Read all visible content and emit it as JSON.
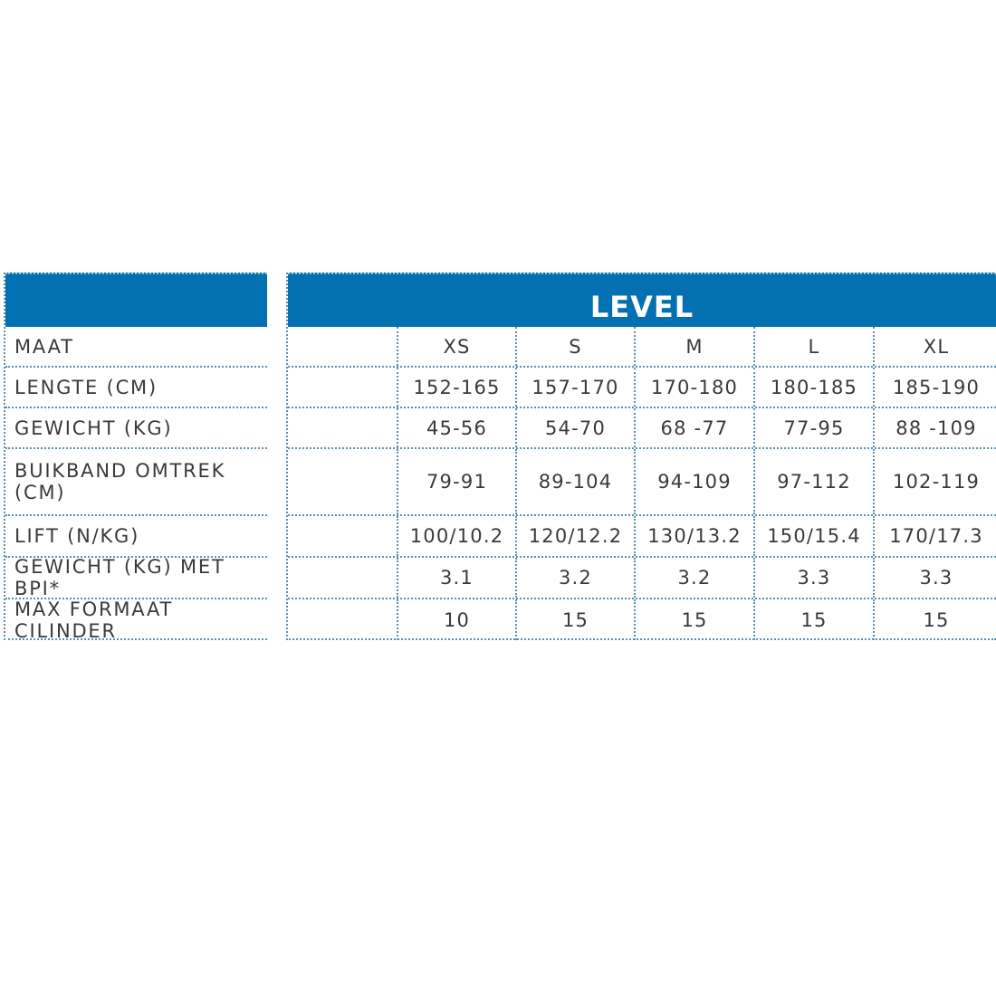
{
  "table": {
    "product_title": "LEVEL",
    "rows": [
      {
        "label": "MAAT",
        "values": [
          "XS",
          "S",
          "M",
          "L",
          "XL"
        ]
      },
      {
        "label": "LENGTE (CM)",
        "values": [
          "152-165",
          "157-170",
          "170-180",
          "180-185",
          "185-190"
        ]
      },
      {
        "label": "GEWICHT (KG)",
        "values": [
          "45-56",
          "54-70",
          "68 -77",
          "77-95",
          "88 -109"
        ]
      },
      {
        "label": "BUIKBAND OMTREK\n(CM)",
        "values": [
          "79-91",
          "89-104",
          "94-109",
          "97-112",
          "102-119"
        ]
      },
      {
        "label": "LIFT (N/KG)",
        "values": [
          "100/10.2",
          "120/12.2",
          "130/13.2",
          "150/15.4",
          "170/17.3"
        ]
      },
      {
        "label": "GEWICHT (KG) MET BPI*",
        "values": [
          "3.1",
          "3.2",
          "3.2",
          "3.3",
          "3.3"
        ]
      },
      {
        "label": "MAX FORMAAT CILINDER",
        "values": [
          "10",
          "15",
          "15",
          "15",
          "15"
        ]
      }
    ]
  },
  "colors": {
    "header_blue": "#0370b2",
    "dotted_border": "#5f8fae",
    "text": "#3a3a3a"
  }
}
